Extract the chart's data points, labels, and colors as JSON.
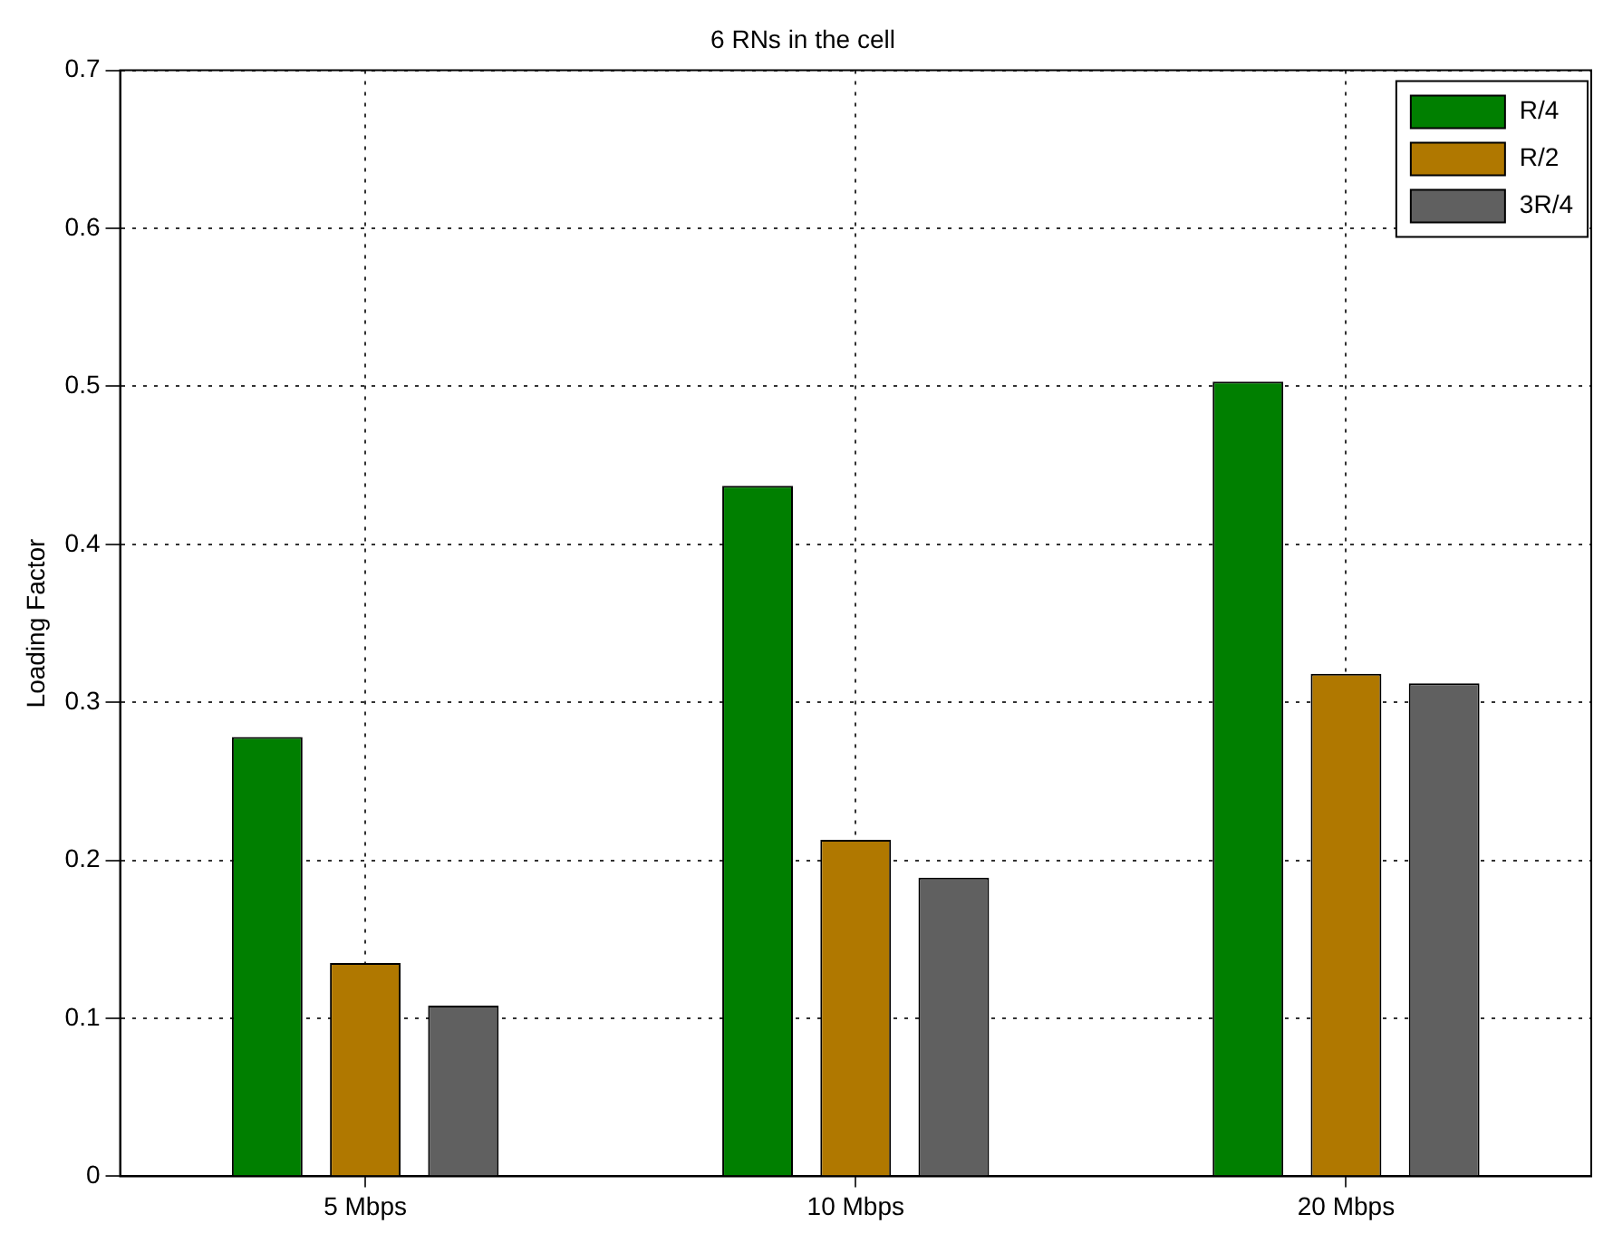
{
  "chart_data": {
    "type": "bar",
    "title": "6 RNs in the cell",
    "ylabel": "Loading Factor",
    "categories": [
      "5 Mbps",
      "10 Mbps",
      "20 Mbps"
    ],
    "series": [
      {
        "name": "R/4",
        "color": "#007f00",
        "values": [
          0.278,
          0.437,
          0.503
        ]
      },
      {
        "name": "R/2",
        "color": "#b07800",
        "values": [
          0.135,
          0.213,
          0.318
        ]
      },
      {
        "name": "3R/4",
        "color": "#606060",
        "values": [
          0.108,
          0.189,
          0.312
        ]
      }
    ],
    "ylim": [
      0,
      0.7
    ],
    "yticks": [
      0,
      0.1,
      0.2,
      0.3,
      0.4,
      0.5,
      0.6,
      0.7
    ],
    "grid": true,
    "legend": "top right"
  }
}
